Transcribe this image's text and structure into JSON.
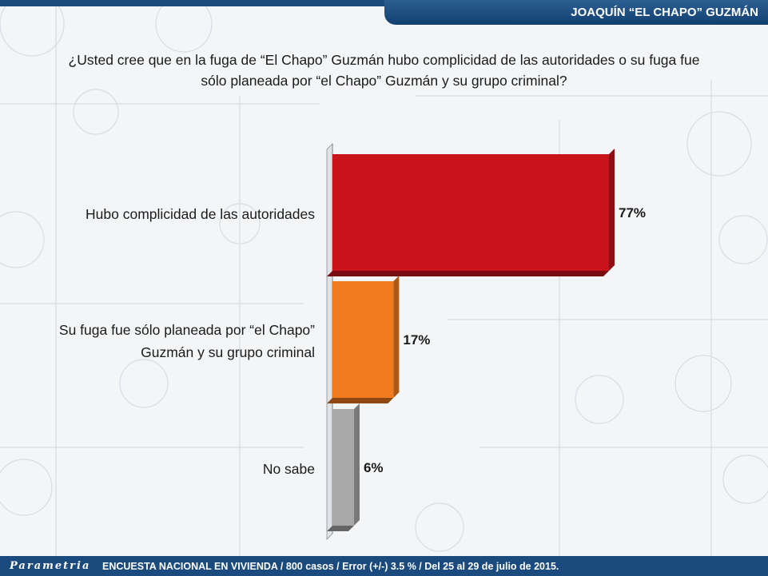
{
  "header": {
    "title": "JOAQUÍN “EL CHAPO” GUZMÁN"
  },
  "question": {
    "line1": "¿Usted cree que en la fuga de “El Chapo” Guzmán hubo complicidad de las autoridades o su fuga fue",
    "line2": "sólo planeada por “el Chapo” Guzmán y su grupo criminal?"
  },
  "chart_data": {
    "type": "bar",
    "orientation": "horizontal",
    "categories": [
      [
        "Hubo complicidad de las autoridades"
      ],
      [
        "Su fuga fue sólo planeada por “el Chapo”",
        "Guzmán y su grupo criminal"
      ],
      [
        "No sabe"
      ]
    ],
    "values": [
      77,
      17,
      6
    ],
    "data_labels": [
      "77%",
      "17%",
      "6%"
    ],
    "colors": [
      "#c8141a",
      "#f07a1e",
      "#a8a8a8"
    ],
    "xlim": [
      0,
      80
    ],
    "grid": false
  },
  "watermark": {
    "brand": "Parametria"
  },
  "footer": {
    "brand": "Parametria",
    "note": "ENCUESTA NACIONAL EN VIVIENDA / 800 casos / Error (+/-) 3.5 % / Del 25 al 29 de julio de 2015."
  }
}
